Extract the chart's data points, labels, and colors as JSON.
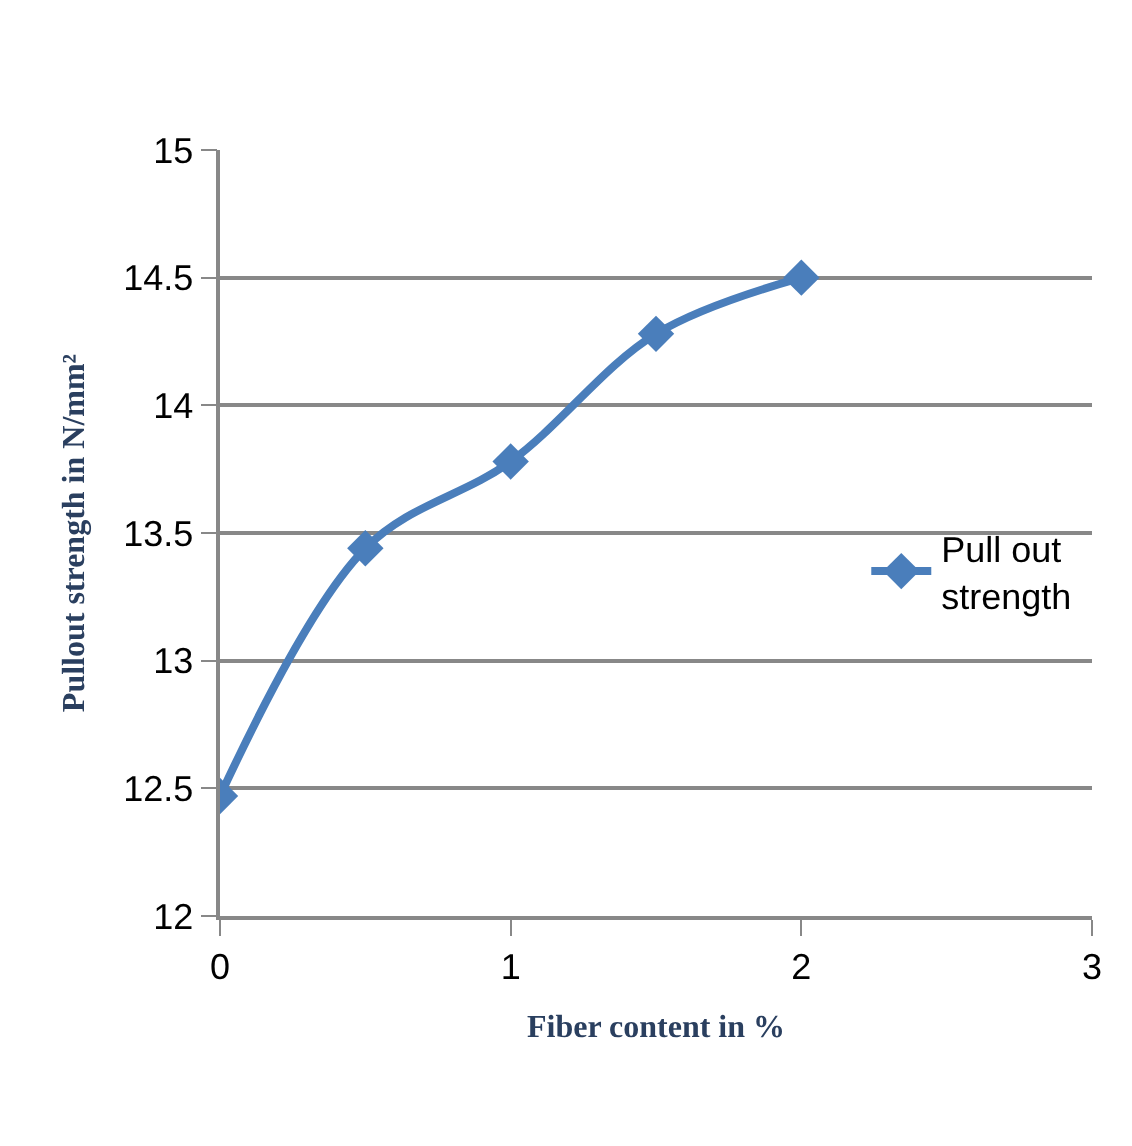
{
  "chart_data": {
    "type": "line",
    "xlabel": "Fiber content in %",
    "ylabel": "Pullout strength in N/mm²",
    "x": [
      0,
      0.5,
      1,
      1.5,
      2
    ],
    "series": [
      {
        "name": "Pull out strength",
        "color": "#4a7ebb",
        "values": [
          12.47,
          13.44,
          13.78,
          14.28,
          14.5
        ]
      }
    ],
    "xlim": [
      0,
      3
    ],
    "xticks": [
      0,
      1,
      2,
      3
    ],
    "ylim": [
      12,
      15
    ],
    "yticks": [
      12,
      12.5,
      13,
      13.5,
      14,
      14.5,
      15
    ],
    "grid": "y",
    "legend": "right",
    "marker": "diamond",
    "line_style": "solid"
  }
}
